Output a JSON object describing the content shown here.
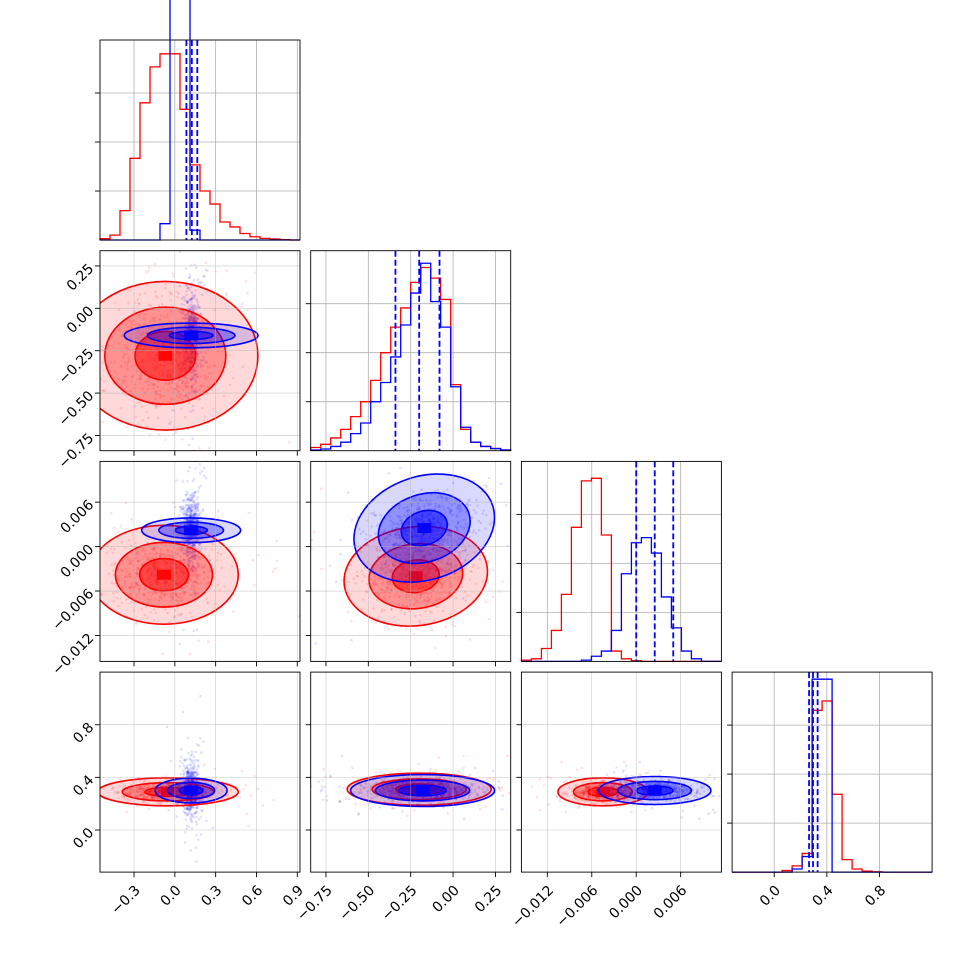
{
  "chart_data": {
    "type": "corner",
    "grid": true,
    "colors": {
      "series_a": "#ff0000",
      "series_b": "#0000ff",
      "grid": "#b0b0b0",
      "frame": "#000000"
    },
    "series": [
      {
        "name": "",
        "color": "#ff0000"
      },
      {
        "name": "",
        "color": "#0000ff"
      }
    ],
    "parameters": [
      {
        "range": [
          -0.55,
          0.92
        ],
        "xticks": [
          -0.3,
          0.0,
          0.3,
          0.6,
          0.9
        ],
        "tick_labels": [
          "−0.3",
          "0.0",
          "0.3",
          "0.6",
          "0.9"
        ]
      },
      {
        "range": [
          -0.84,
          0.34
        ],
        "xticks": [
          -0.75,
          -0.5,
          -0.25,
          0.0,
          0.25
        ],
        "tick_labels": [
          "−0.75",
          "−0.50",
          "−0.25",
          "0.00",
          "0.25"
        ]
      },
      {
        "range": [
          -0.0155,
          0.0115
        ],
        "xticks": [
          -0.012,
          -0.006,
          0.0,
          0.006
        ],
        "tick_labels": [
          "−0.012",
          "−0.006",
          "0.000",
          "0.006"
        ]
      },
      {
        "range": [
          -0.32,
          1.2
        ],
        "xticks": [
          0.0,
          0.4,
          0.8
        ],
        "tick_labels": [
          "0.0",
          "0.4",
          "0.8"
        ]
      }
    ],
    "marginals": [
      {
        "bins": 20,
        "red_counts": [
          0.4,
          1.5,
          9,
          25,
          42,
          53,
          57,
          57,
          40,
          23,
          15,
          11,
          5.5,
          4,
          2,
          1,
          0.5,
          0.3,
          0.1,
          0
        ],
        "blue_counts": [
          0,
          0,
          0,
          0,
          0,
          0,
          5,
          110,
          90,
          3,
          0,
          0,
          0,
          0,
          0,
          0,
          0,
          0,
          0,
          0
        ],
        "quantile_lines": [
          0.085,
          0.125,
          0.165
        ],
        "y_max": 60
      },
      {
        "bins": 20,
        "red_counts": [
          1.5,
          3,
          6,
          10,
          16,
          23,
          33,
          46,
          58,
          67,
          79,
          86,
          81,
          71,
          31,
          10,
          4,
          2,
          1,
          0.3
        ],
        "blue_counts": [
          0.3,
          0.8,
          2,
          4,
          8,
          13,
          23,
          32,
          44,
          59,
          74,
          88,
          70,
          58,
          30,
          11,
          4,
          2,
          1,
          0.3
        ],
        "quantile_lines": [
          -0.34,
          -0.2,
          -0.08
        ],
        "y_max": 92
      },
      {
        "bins": 20,
        "red_counts": [
          0.5,
          1,
          5,
          12,
          26,
          52,
          70,
          71,
          49,
          4,
          1,
          0.3,
          0,
          0,
          0,
          0,
          0,
          0,
          0,
          0
        ],
        "blue_counts": [
          0,
          0,
          0,
          0,
          0,
          0,
          0.5,
          2,
          4,
          12,
          34,
          46,
          48,
          42,
          25,
          13,
          4,
          1,
          0,
          0
        ],
        "quantile_lines": [
          0.0,
          0.0025,
          0.005
        ],
        "y_max": 76
      },
      {
        "bins": 20,
        "red_counts": [
          0,
          0,
          0,
          0,
          0,
          0.5,
          2,
          6,
          52,
          55,
          25,
          4,
          1,
          0.3,
          0.1,
          0,
          0,
          0,
          0,
          0
        ],
        "blue_counts": [
          0,
          0,
          0,
          0,
          0,
          0,
          1,
          5,
          62,
          62,
          0,
          0,
          0,
          0,
          0,
          0,
          0,
          0,
          0,
          0
        ],
        "quantile_lines": [
          0.265,
          0.295,
          0.33
        ],
        "y_max": 63
      }
    ],
    "joint": [
      {
        "ix": 0,
        "iy": 1,
        "red": {
          "mean": [
            -0.07,
            -0.28
          ],
          "sd": [
            0.18,
            0.18
          ],
          "rho": 0.0
        },
        "blue": {
          "mean": [
            0.12,
            -0.16
          ],
          "sd": [
            0.03,
            0.13
          ],
          "rho": 0.0
        }
      },
      {
        "ix": 0,
        "iy": 2,
        "red": {
          "mean": [
            -0.08,
            -0.0038
          ],
          "sd": [
            0.18,
            0.0022
          ],
          "rho": 0.0
        },
        "blue": {
          "mean": [
            0.12,
            0.0022
          ],
          "sd": [
            0.03,
            0.0022
          ],
          "rho": 0.0
        }
      },
      {
        "ix": 1,
        "iy": 2,
        "red": {
          "mean": [
            -0.22,
            -0.004
          ],
          "sd": [
            0.14,
            0.0022
          ],
          "rho": 0.1
        },
        "blue": {
          "mean": [
            -0.17,
            0.0025
          ],
          "sd": [
            0.14,
            0.0023
          ],
          "rho": 0.25
        }
      },
      {
        "ix": 0,
        "iy": 3,
        "red": {
          "mean": [
            -0.05,
            0.29
          ],
          "sd": [
            0.17,
            0.035
          ],
          "rho": 0.0
        },
        "blue": {
          "mean": [
            0.12,
            0.3
          ],
          "sd": [
            0.03,
            0.09
          ],
          "rho": 0.0
        }
      },
      {
        "ix": 1,
        "iy": 3,
        "red": {
          "mean": [
            -0.2,
            0.31
          ],
          "sd": [
            0.14,
            0.04
          ],
          "rho": 0.0
        },
        "blue": {
          "mean": [
            -0.18,
            0.3
          ],
          "sd": [
            0.14,
            0.04
          ],
          "rho": 0.0
        }
      },
      {
        "ix": 2,
        "iy": 3,
        "red": {
          "mean": [
            -0.0045,
            0.29
          ],
          "sd": [
            0.002,
            0.035
          ],
          "rho": 0.0
        },
        "blue": {
          "mean": [
            0.0025,
            0.3
          ],
          "sd": [
            0.0025,
            0.035
          ],
          "rho": 0.0
        }
      }
    ],
    "y_axes": [
      {
        "row": 1,
        "ticks": [
          0.25,
          0.0,
          -0.25,
          -0.5,
          -0.75
        ],
        "tick_labels": [
          "0.25",
          "0.00",
          "−0.25",
          "−0.50",
          "−0.75"
        ]
      },
      {
        "row": 2,
        "ticks": [
          0.006,
          0.0,
          -0.006,
          -0.012
        ],
        "tick_labels": [
          "0.006",
          "0.000",
          "−0.006",
          "−0.012"
        ]
      },
      {
        "row": 3,
        "ticks": [
          0.8,
          0.4,
          0.0
        ],
        "tick_labels": [
          "0.8",
          "0.4",
          "0.0"
        ]
      }
    ]
  }
}
